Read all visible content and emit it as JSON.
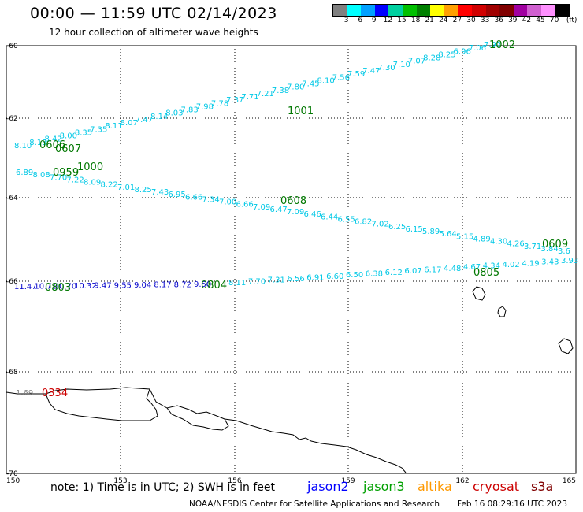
{
  "header": {
    "title": "00:00 — 11:59 UTC 02/14/2023",
    "subtitle": "12 hour collection of altimeter wave heights"
  },
  "legend": {
    "colors": [
      "#808080",
      "#00ffff",
      "#00a0ff",
      "#0000ff",
      "#00d0a0",
      "#00c000",
      "#008000",
      "#ffff00",
      "#ffa000",
      "#ff0000",
      "#d00000",
      "#a00000",
      "#800000",
      "#a000a0",
      "#d060d0",
      "#ff90ff",
      "#000000"
    ],
    "labels": [
      "3",
      "6",
      "9",
      "12",
      "15",
      "18",
      "21",
      "24",
      "27",
      "30",
      "33",
      "36",
      "39",
      "42",
      "45",
      "70"
    ],
    "unit": "(ft)"
  },
  "axes": {
    "lat_labels": [
      "-60",
      "-62",
      "-64",
      "-66",
      "-68",
      "-70"
    ],
    "lon_labels": [
      "150",
      "153",
      "156",
      "159",
      "162",
      "165"
    ]
  },
  "tracks": {
    "track_a": {
      "color": "#00c8e6",
      "values": [
        "8.10",
        "8.13",
        "8.42",
        "8.00",
        "8.35",
        "7.35",
        "8.11",
        "8.07",
        "7.47",
        "8.14",
        "8.03",
        "7.83",
        "7.98",
        "7.78",
        "7.37",
        "7.71",
        "7.21",
        "7.38",
        "7.80",
        "7.45",
        "8.10",
        "7.56",
        "7.59",
        "7.47",
        "7.30",
        "7.10",
        "7.07",
        "8.28",
        "8.25",
        "6.96",
        "7.06",
        "7.92"
      ]
    },
    "track_b": {
      "color": "#00c8e6",
      "values": [
        "6.89",
        "8.08",
        "7.70",
        "7.22",
        "8.09",
        "8.22",
        "7.01",
        "8.25",
        "7.43",
        "6.95",
        "6.66",
        "7.34",
        "7.00",
        "6.66",
        "7.09",
        "6.47",
        "7.09",
        "6.46",
        "6.44",
        "6.55",
        "6.82",
        "7.02",
        "6.25",
        "6.15",
        "5.89",
        "5.64",
        "5.15",
        "4.89",
        "4.30",
        "4.26",
        "3.71",
        "3.84",
        "3.6"
      ]
    },
    "track_c": {
      "dark_color": "#0000cc",
      "light_color": "#00c8e6",
      "dark_values": [
        "11.47",
        "10.71",
        "10.70",
        "10.32",
        "9.47",
        "9.55",
        "9.04",
        "8.17",
        "8.72",
        "9.50"
      ],
      "light_values": [
        "8.11",
        "7.70",
        "7.31",
        "6.56",
        "6.91",
        "6.60",
        "6.50",
        "6.38",
        "6.12",
        "6.07",
        "6.17",
        "4.48",
        "4.67",
        "4.34",
        "4.02",
        "4.19",
        "3.43",
        "3.93"
      ]
    },
    "track_d": {
      "color": "#808080",
      "values": [
        "1.69"
      ]
    }
  },
  "time_labels": {
    "jason3_color": "#007700",
    "cryosat_color": "#cc0000",
    "items": [
      "1002",
      "1001",
      "0606",
      "0607",
      "1000",
      "0959",
      "0608",
      "0609",
      "0805",
      "0804",
      "0803",
      "0334"
    ]
  },
  "footer": {
    "note": "note: 1) Time is in UTC; 2) SWH is in feet",
    "satellites": [
      {
        "name": "jason2",
        "color": "#0000ff"
      },
      {
        "name": "jason3",
        "color": "#00a000"
      },
      {
        "name": "altika",
        "color": "#ff9900"
      },
      {
        "name": "cryosat",
        "color": "#cc0000"
      },
      {
        "name": "s3a",
        "color": "#800000"
      }
    ],
    "credit": "NOAA/NESDIS Center for Satellite Applications and Research",
    "generated": "Feb 16 08:29:16 UTC 2023"
  }
}
